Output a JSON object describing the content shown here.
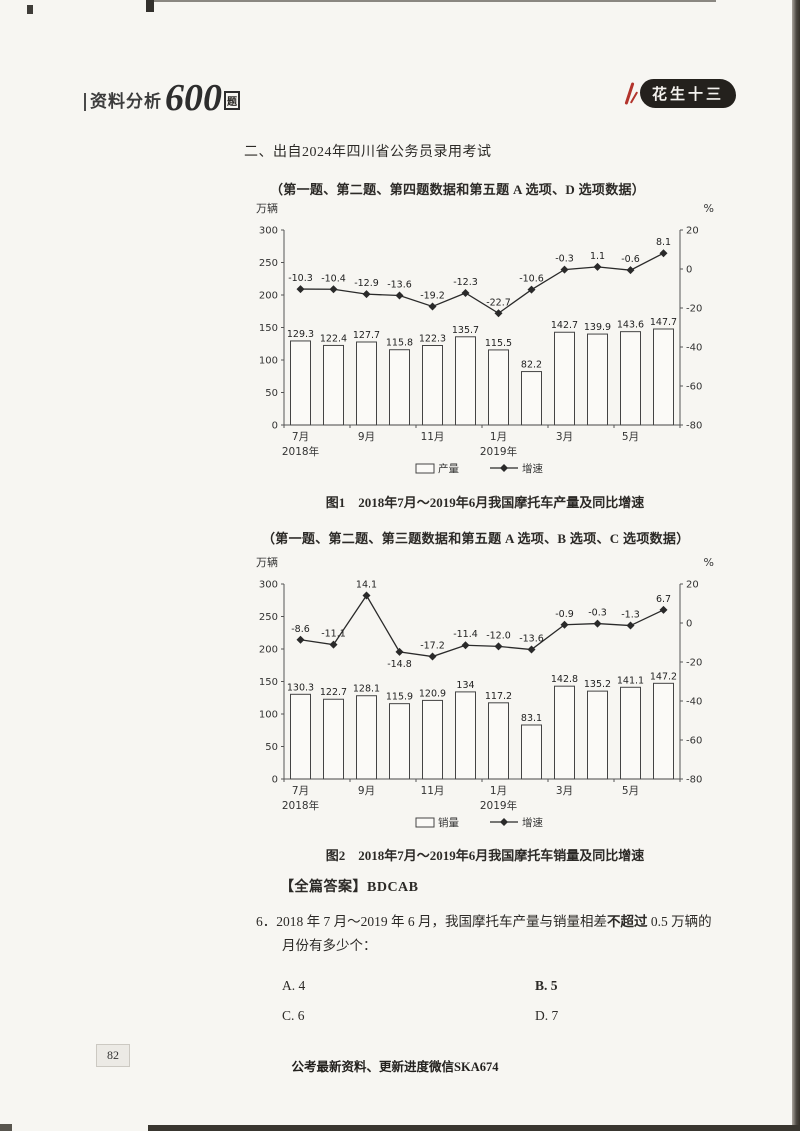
{
  "header": {
    "brand_title": "资料分析",
    "brand_number": "600",
    "brand_suffix": "题",
    "logo_text": "花生十三"
  },
  "section_title": "二、出自2024年四川省公务员录用考试",
  "fig1": {
    "note": "（第一题、第二题、第四题数据和第五题 A 选项、D 选项数据）",
    "caption": "图1　2018年7月～2019年6月我国摩托车产量及同比增速",
    "chart_data": {
      "type": "bar+line",
      "x_tick_labels": [
        "7月",
        "9月",
        "11月",
        "1月",
        "3月",
        "5月"
      ],
      "x_tick_slots": [
        0,
        2,
        4,
        6,
        8,
        10
      ],
      "year_labels": [
        {
          "text": "2018年",
          "slot": 0
        },
        {
          "text": "2019年",
          "slot": 6
        }
      ],
      "left_axis": {
        "unit": "万辆",
        "min": 0,
        "max": 300,
        "step": 50
      },
      "right_axis": {
        "unit": "%",
        "min": -80,
        "max": 20,
        "step": 20
      },
      "bars": {
        "name": "产量",
        "values": [
          "129.3",
          "122.4",
          "127.7",
          "115.8",
          "122.3",
          "135.7",
          "115.5",
          "82.2",
          "142.7",
          "139.9",
          "143.6",
          "147.7"
        ]
      },
      "line": {
        "name": "增速",
        "values": [
          "-10.3",
          "-10.4",
          "-12.9",
          "-13.6",
          "-19.2",
          "-12.3",
          "-22.7",
          "-10.6",
          "-0.3",
          "1.1",
          "-0.6",
          "8.1"
        ],
        "labels_below": []
      }
    }
  },
  "fig2": {
    "note": "（第一题、第二题、第三题数据和第五题 A 选项、B 选项、C 选项数据）",
    "caption": "图2　2018年7月～2019年6月我国摩托车销量及同比增速",
    "chart_data": {
      "type": "bar+line",
      "x_tick_labels": [
        "7月",
        "9月",
        "11月",
        "1月",
        "3月",
        "5月"
      ],
      "x_tick_slots": [
        0,
        2,
        4,
        6,
        8,
        10
      ],
      "year_labels": [
        {
          "text": "2018年",
          "slot": 0
        },
        {
          "text": "2019年",
          "slot": 6
        }
      ],
      "left_axis": {
        "unit": "万辆",
        "min": 0,
        "max": 300,
        "step": 50
      },
      "right_axis": {
        "unit": "%",
        "min": -80,
        "max": 20,
        "step": 20
      },
      "bars": {
        "name": "销量",
        "values": [
          "130.3",
          "122.7",
          "128.1",
          "115.9",
          "120.9",
          "134",
          "117.2",
          "83.1",
          "142.8",
          "135.2",
          "141.1",
          "147.2"
        ]
      },
      "line": {
        "name": "增速",
        "values": [
          "-8.6",
          "-11.1",
          "14.1",
          "-14.8",
          "-17.2",
          "-11.4",
          "-12.0",
          "-13.6",
          "-0.9",
          "-0.3",
          "-1.3",
          "6.7"
        ],
        "labels_below": [
          3
        ]
      }
    }
  },
  "answers": {
    "label": "【全篇答案】",
    "value": "BDCAB"
  },
  "question6": {
    "number": "6．",
    "line1_pre": "2018 年 7 月～2019 年 6 月，我国摩托车产量与销量相差",
    "line1_bold": "不超过",
    "line1_post": " 0.5 万辆的",
    "line2": "月份有多少个："
  },
  "options": [
    {
      "label": "A. 4"
    },
    {
      "label": "B. 5"
    },
    {
      "label": "C. 6"
    },
    {
      "label": "D. 7"
    }
  ],
  "footer": {
    "promo": "公考最新资料、更新进度微信SKA674",
    "page_number": "82"
  }
}
